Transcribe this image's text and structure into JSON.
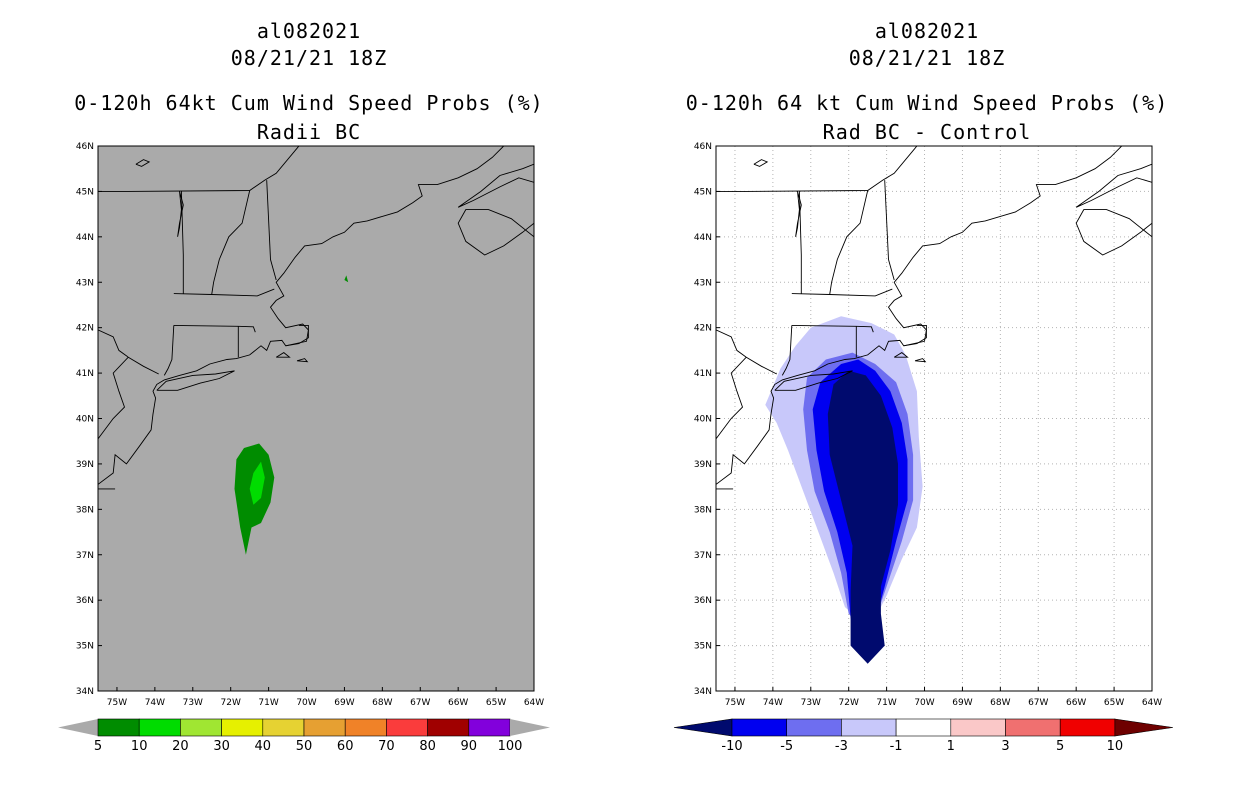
{
  "panels": [
    {
      "id": "radii-bc",
      "storm_id": "al082021",
      "datetime": "08/21/21 18Z",
      "title": "0-120h 64kt Cum Wind Speed Probs (%)",
      "subtitle": "Radii BC",
      "background": "#aaaaaa",
      "colorbar_labels": [
        "5",
        "10",
        "20",
        "30",
        "40",
        "50",
        "60",
        "70",
        "80",
        "90",
        "100"
      ],
      "colorbar_colors": [
        "#008c00",
        "#00dc00",
        "#a0e632",
        "#e6f000",
        "#e6d232",
        "#e6a032",
        "#f08228",
        "#fa3c3c",
        "#a00000",
        "#8200dc"
      ]
    },
    {
      "id": "rad-bc-control",
      "storm_id": "al082021",
      "datetime": "08/21/21 18Z",
      "title": "0-120h 64 kt Cum Wind Speed Probs (%)",
      "subtitle": "Rad BC - Control",
      "background": "#ffffff",
      "colorbar_labels": [
        "-10",
        "-5",
        "-3",
        "-1",
        "1",
        "3",
        "5",
        "10"
      ],
      "colorbar_colors": [
        "#000a6e",
        "#0000f0",
        "#6e6ef0",
        "#c8c8fa",
        "#ffffff",
        "#fac8c8",
        "#f07070",
        "#f00000",
        "#6e0000"
      ]
    }
  ],
  "map": {
    "lat_labels": [
      "46N",
      "45N",
      "44N",
      "43N",
      "42N",
      "41N",
      "40N",
      "39N",
      "38N",
      "37N",
      "36N",
      "35N",
      "34N"
    ],
    "lon_labels": [
      "75W",
      "74W",
      "73W",
      "72W",
      "71W",
      "70W",
      "69W",
      "68W",
      "67W",
      "66W",
      "65W",
      "64W"
    ],
    "lat_range": [
      34,
      46
    ],
    "lon_range": [
      -75.5,
      -64
    ]
  }
}
